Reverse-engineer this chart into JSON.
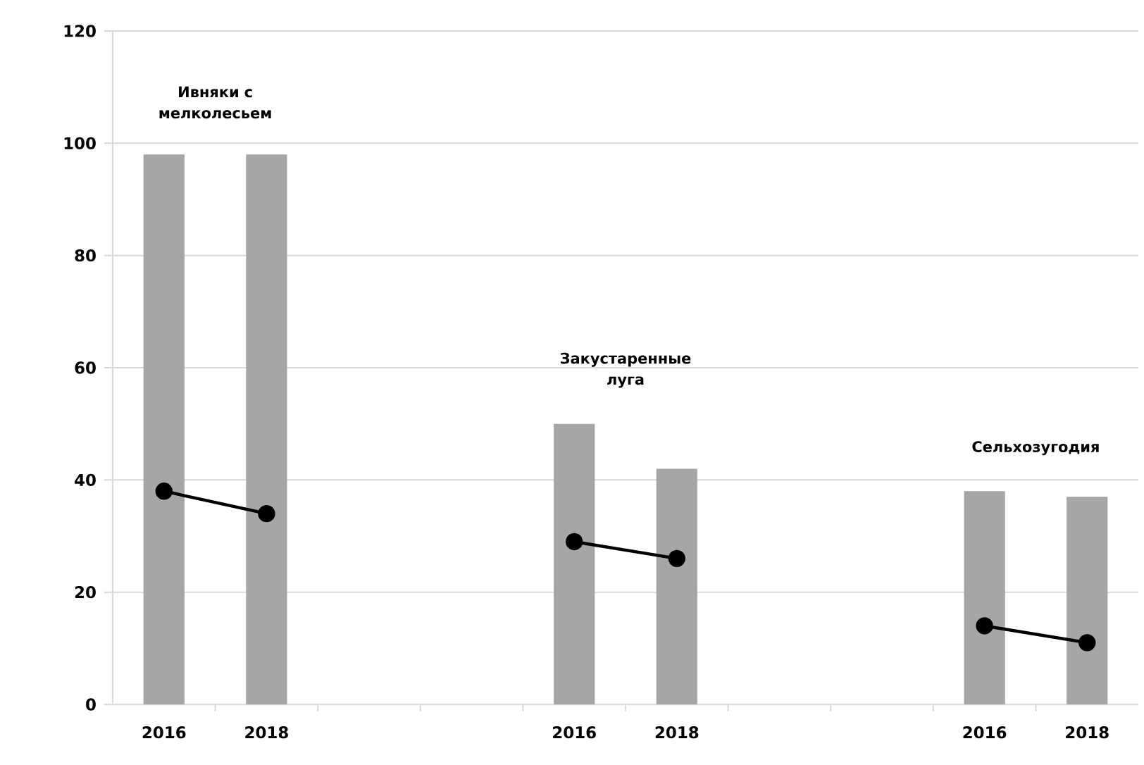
{
  "chart_data": {
    "type": "bar",
    "categories": [
      "2016",
      "2018",
      null,
      null,
      "2016",
      "2018",
      null,
      null,
      "2016",
      "2018"
    ],
    "series": [
      {
        "color": "#a6a6a6",
        "values": [
          98,
          98,
          null,
          null,
          50,
          42,
          null,
          null,
          38,
          37
        ]
      },
      {
        "type": "line",
        "color": "#000000",
        "marker": "circle",
        "line_style": "solid",
        "values": [
          38,
          34,
          null,
          null,
          29,
          26,
          null,
          null,
          14,
          11
        ]
      }
    ],
    "ylim": [
      0,
      120
    ],
    "yticks": [
      0,
      20,
      40,
      60,
      80,
      100,
      120
    ],
    "grid": "y",
    "annotations": [
      "Ивняки с мелколесьем",
      "Закустаренные луга",
      "Сельхозугодия"
    ]
  }
}
